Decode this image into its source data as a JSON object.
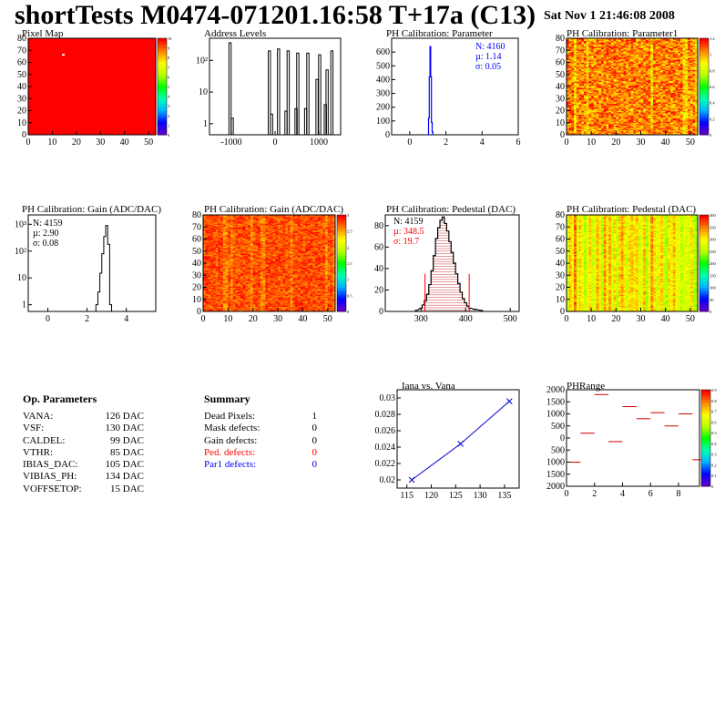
{
  "header": {
    "title": "shortTests M0474-071201.16:58 T+17a (C13)",
    "date": "Sat Nov  1 21:46:08 2008"
  },
  "panels": {
    "pixel_map": "Pixel Map",
    "address_levels": "Address Levels",
    "ph_param": "PH Calibration: Parameter",
    "ph_param1": "PH Calibration: Parameter1",
    "gain_hist": "PH Calibration: Gain (ADC/DAC)",
    "gain_map": "PH Calibration: Gain (ADC/DAC)",
    "ped_hist": "PH Calibration: Pedestal (DAC)",
    "ped_map": "PH Calibration: Pedestal (DAC)",
    "iana": "Iana vs. Vana",
    "phrange": "PHRange"
  },
  "op_parameters": {
    "heading": "Op. Parameters",
    "rows": [
      {
        "key": "VANA:",
        "value": "126 DAC"
      },
      {
        "key": "VSF:",
        "value": "130 DAC"
      },
      {
        "key": "CALDEL:",
        "value": "99 DAC"
      },
      {
        "key": "VTHR:",
        "value": "85 DAC"
      },
      {
        "key": "IBIAS_DAC:",
        "value": "105 DAC"
      },
      {
        "key": "VIBIAS_PH:",
        "value": "134 DAC"
      },
      {
        "key": "VOFFSETOP:",
        "value": "15 DAC"
      }
    ]
  },
  "summary": {
    "heading": "Summary",
    "rows": [
      {
        "key": "Dead Pixels:",
        "value": "1",
        "color": "#000000"
      },
      {
        "key": "Mask defects:",
        "value": "0",
        "color": "#000000"
      },
      {
        "key": "Gain defects:",
        "value": "0",
        "color": "#000000"
      },
      {
        "key": "Ped. defects:",
        "value": "0",
        "color": "#ff0000"
      },
      {
        "key": "Par1 defects:",
        "value": "0",
        "color": "#0000ff"
      }
    ]
  },
  "chart_data": [
    {
      "id": "pixel_map",
      "type": "heatmap",
      "title": "Pixel Map",
      "xlim": [
        0,
        53
      ],
      "ylim": [
        0,
        80
      ],
      "xticks": [
        "0",
        "10",
        "20",
        "30",
        "40",
        "50"
      ],
      "yticks": [
        "0",
        "10",
        "20",
        "30",
        "40",
        "50",
        "60",
        "70",
        "80"
      ],
      "zticks": [
        "0",
        "1",
        "2",
        "3",
        "4",
        "5",
        "6",
        "7",
        "8",
        "9",
        "10"
      ],
      "fill_value": 10,
      "dead_pixels": [
        {
          "col": 14,
          "row": 66,
          "value": 0
        }
      ]
    },
    {
      "id": "address_levels",
      "type": "bar",
      "title": "Address Levels",
      "log_y": true,
      "xlim": [
        -1500,
        1500
      ],
      "xticks": [
        "-1000",
        "0",
        "1000"
      ],
      "yticks": [
        "1",
        "10",
        "10²"
      ],
      "peaks": [
        {
          "x": -1030,
          "y": 360
        },
        {
          "x": -980,
          "y": 1.5
        },
        {
          "x": -130,
          "y": 200
        },
        {
          "x": -80,
          "y": 2
        },
        {
          "x": 80,
          "y": 230
        },
        {
          "x": 250,
          "y": 2.5
        },
        {
          "x": 300,
          "y": 200
        },
        {
          "x": 480,
          "y": 3
        },
        {
          "x": 520,
          "y": 170
        },
        {
          "x": 700,
          "y": 3
        },
        {
          "x": 750,
          "y": 170
        },
        {
          "x": 960,
          "y": 25
        },
        {
          "x": 1020,
          "y": 150
        },
        {
          "x": 1150,
          "y": 4
        },
        {
          "x": 1190,
          "y": 50
        },
        {
          "x": 1300,
          "y": 200
        }
      ]
    },
    {
      "id": "ph_param",
      "type": "bar",
      "title": "PH Calibration: Parameter",
      "xlim": [
        -1,
        6
      ],
      "ylim": [
        0,
        700
      ],
      "xticks": [
        "0",
        "2",
        "4",
        "6"
      ],
      "yticks": [
        "0",
        "100",
        "200",
        "300",
        "400",
        "500",
        "600"
      ],
      "stats": {
        "N": "N: 4160",
        "mean": "µ: 1.14",
        "sigma": "σ: 0.05"
      },
      "bins": [
        {
          "x": 1.06,
          "y": 120
        },
        {
          "x": 1.1,
          "y": 420
        },
        {
          "x": 1.14,
          "y": 640
        },
        {
          "x": 1.18,
          "y": 420
        },
        {
          "x": 1.22,
          "y": 90
        },
        {
          "x": 1.26,
          "y": 20
        }
      ]
    },
    {
      "id": "ph_param1",
      "type": "heatmap",
      "title": "PH Calibration: Parameter1",
      "xlim": [
        0,
        53
      ],
      "ylim": [
        0,
        80
      ],
      "xticks": [
        "0",
        "10",
        "20",
        "30",
        "40",
        "50"
      ],
      "yticks": [
        "0",
        "10",
        "20",
        "30",
        "40",
        "50",
        "60",
        "70",
        "80"
      ],
      "zticks": [
        "0",
        "0.2",
        "0.4",
        "0.6",
        "0.8",
        "1",
        "1.2"
      ]
    },
    {
      "id": "gain_hist",
      "type": "bar",
      "title": "PH Calibration: Gain (ADC/DAC)",
      "log_y": true,
      "xlim": [
        -1,
        5.5
      ],
      "xticks": [
        "0",
        "2",
        "4"
      ],
      "yticks": [
        "1",
        "10",
        "10²",
        "10³"
      ],
      "stats": {
        "N": "N: 4159",
        "mean": "µ: 2.90",
        "sigma": "σ: 0.08"
      },
      "bins": [
        {
          "x": 2.5,
          "y": 1
        },
        {
          "x": 2.6,
          "y": 3
        },
        {
          "x": 2.7,
          "y": 15
        },
        {
          "x": 2.8,
          "y": 80
        },
        {
          "x": 2.9,
          "y": 350
        },
        {
          "x": 3.0,
          "y": 900
        },
        {
          "x": 3.1,
          "y": 180
        },
        {
          "x": 3.2,
          "y": 1
        }
      ]
    },
    {
      "id": "gain_map",
      "type": "heatmap",
      "title": "PH Calibration: Gain (ADC/DAC)",
      "xlim": [
        0,
        53
      ],
      "ylim": [
        0,
        80
      ],
      "xticks": [
        "0",
        "10",
        "20",
        "30",
        "40",
        "50"
      ],
      "yticks": [
        "0",
        "10",
        "20",
        "30",
        "40",
        "50",
        "60",
        "70",
        "80"
      ],
      "zticks": [
        "0",
        "0.5",
        "1",
        "1.5",
        "2",
        "2.5",
        "3"
      ]
    },
    {
      "id": "ped_hist",
      "type": "bar",
      "title": "PH Calibration: Pedestal (DAC)",
      "xlim": [
        220,
        520
      ],
      "ylim": [
        0,
        90
      ],
      "xticks": [
        "300",
        "400",
        "500"
      ],
      "yticks": [
        "0",
        "20",
        "40",
        "60",
        "80"
      ],
      "stats": {
        "N": "N: 4159",
        "mean": "µ: 348.5",
        "sigma": "σ: 19.7"
      },
      "cut_lines": [
        {
          "x": 309,
          "y": 35
        },
        {
          "x": 408,
          "y": 35
        }
      ],
      "bins": [
        {
          "x": 290,
          "y": 1
        },
        {
          "x": 300,
          "y": 3
        },
        {
          "x": 305,
          "y": 6
        },
        {
          "x": 310,
          "y": 10
        },
        {
          "x": 315,
          "y": 16
        },
        {
          "x": 320,
          "y": 25
        },
        {
          "x": 325,
          "y": 38
        },
        {
          "x": 330,
          "y": 52
        },
        {
          "x": 335,
          "y": 68
        },
        {
          "x": 340,
          "y": 78
        },
        {
          "x": 345,
          "y": 85
        },
        {
          "x": 350,
          "y": 88
        },
        {
          "x": 355,
          "y": 82
        },
        {
          "x": 360,
          "y": 75
        },
        {
          "x": 365,
          "y": 65
        },
        {
          "x": 370,
          "y": 55
        },
        {
          "x": 375,
          "y": 45
        },
        {
          "x": 380,
          "y": 35
        },
        {
          "x": 385,
          "y": 26
        },
        {
          "x": 390,
          "y": 18
        },
        {
          "x": 395,
          "y": 12
        },
        {
          "x": 400,
          "y": 8
        },
        {
          "x": 405,
          "y": 5
        },
        {
          "x": 410,
          "y": 3
        },
        {
          "x": 420,
          "y": 2
        },
        {
          "x": 435,
          "y": 1
        }
      ]
    },
    {
      "id": "ped_map",
      "type": "heatmap",
      "title": "PH Calibration: Pedestal (DAC)",
      "xlim": [
        0,
        53
      ],
      "ylim": [
        0,
        80
      ],
      "xticks": [
        "0",
        "10",
        "20",
        "30",
        "40",
        "50"
      ],
      "yticks": [
        "0",
        "10",
        "20",
        "30",
        "40",
        "50",
        "60",
        "70",
        "80"
      ],
      "zticks": [
        "0",
        "50",
        "100",
        "150",
        "200",
        "250",
        "300",
        "350",
        "400"
      ]
    },
    {
      "id": "iana",
      "type": "line",
      "title": "Iana vs. Vana",
      "xlim": [
        113,
        138
      ],
      "ylim": [
        0.019,
        0.031
      ],
      "xticks": [
        "115",
        "120",
        "125",
        "130",
        "135"
      ],
      "yticks": [
        "0.02",
        "0.022",
        "0.024",
        "0.026",
        "0.028",
        "0.03"
      ],
      "x": [
        116,
        126,
        136
      ],
      "y": [
        0.02,
        0.0244,
        0.0296
      ]
    },
    {
      "id": "phrange",
      "type": "scatter",
      "title": "PHRange",
      "xlim": [
        0,
        9.5
      ],
      "ylim": [
        -2000,
        2000
      ],
      "xticks": [
        "0",
        "2",
        "4",
        "6",
        "8"
      ],
      "yticks": [
        "2000",
        "1500",
        "1000",
        "500",
        "0",
        "500",
        "1000",
        "1500",
        "2000"
      ],
      "zticks": [
        "0",
        "0.1",
        "0.2",
        "0.3",
        "0.4",
        "0.5",
        "0.6",
        "0.7",
        "0.8",
        "0.9"
      ],
      "segments": [
        {
          "x": 0,
          "y": -1000
        },
        {
          "x": 1,
          "y": 200
        },
        {
          "x": 2,
          "y": 1800
        },
        {
          "x": 3,
          "y": -150
        },
        {
          "x": 4,
          "y": 1300
        },
        {
          "x": 5,
          "y": 800
        },
        {
          "x": 6,
          "y": 1050
        },
        {
          "x": 7,
          "y": 500
        },
        {
          "x": 8,
          "y": 1000
        },
        {
          "x": 9,
          "y": -900
        }
      ]
    }
  ]
}
